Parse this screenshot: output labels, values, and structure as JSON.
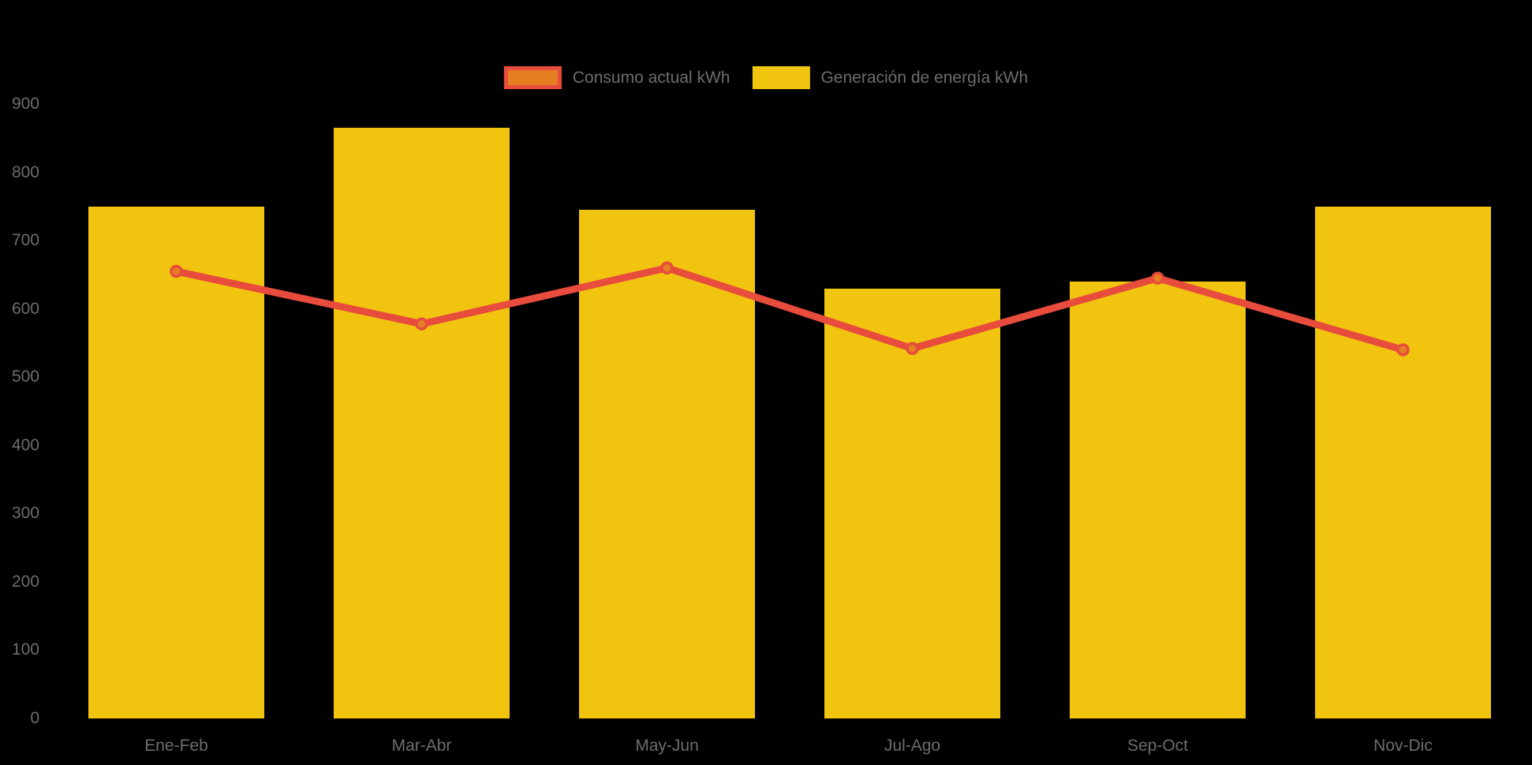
{
  "chart_data": {
    "type": "bar",
    "subtype": "combo-bar-line",
    "title": "",
    "categories": [
      "Ene-Feb",
      "Mar-Abr",
      "May-Jun",
      "Jul-Ago",
      "Sep-Oct",
      "Nov-Dic"
    ],
    "series": [
      {
        "name": "Consumo actual kWh",
        "kind": "line",
        "values": [
          655,
          578,
          660,
          542,
          645,
          540
        ],
        "line_color": "#E74C3C",
        "marker_fill": "#E67E22"
      },
      {
        "name": "Generación de energía kWh",
        "kind": "bar",
        "values": [
          750,
          865,
          745,
          630,
          640,
          750
        ],
        "color": "#F1C40F"
      }
    ],
    "ylim": [
      0,
      900
    ],
    "yticks": [
      0,
      100,
      200,
      300,
      400,
      500,
      600,
      700,
      800,
      900
    ],
    "grid": false,
    "legend_position": "top-center",
    "background_color": "#000000",
    "label_color": "#6D6D6D",
    "xlabel": "",
    "ylabel": ""
  }
}
